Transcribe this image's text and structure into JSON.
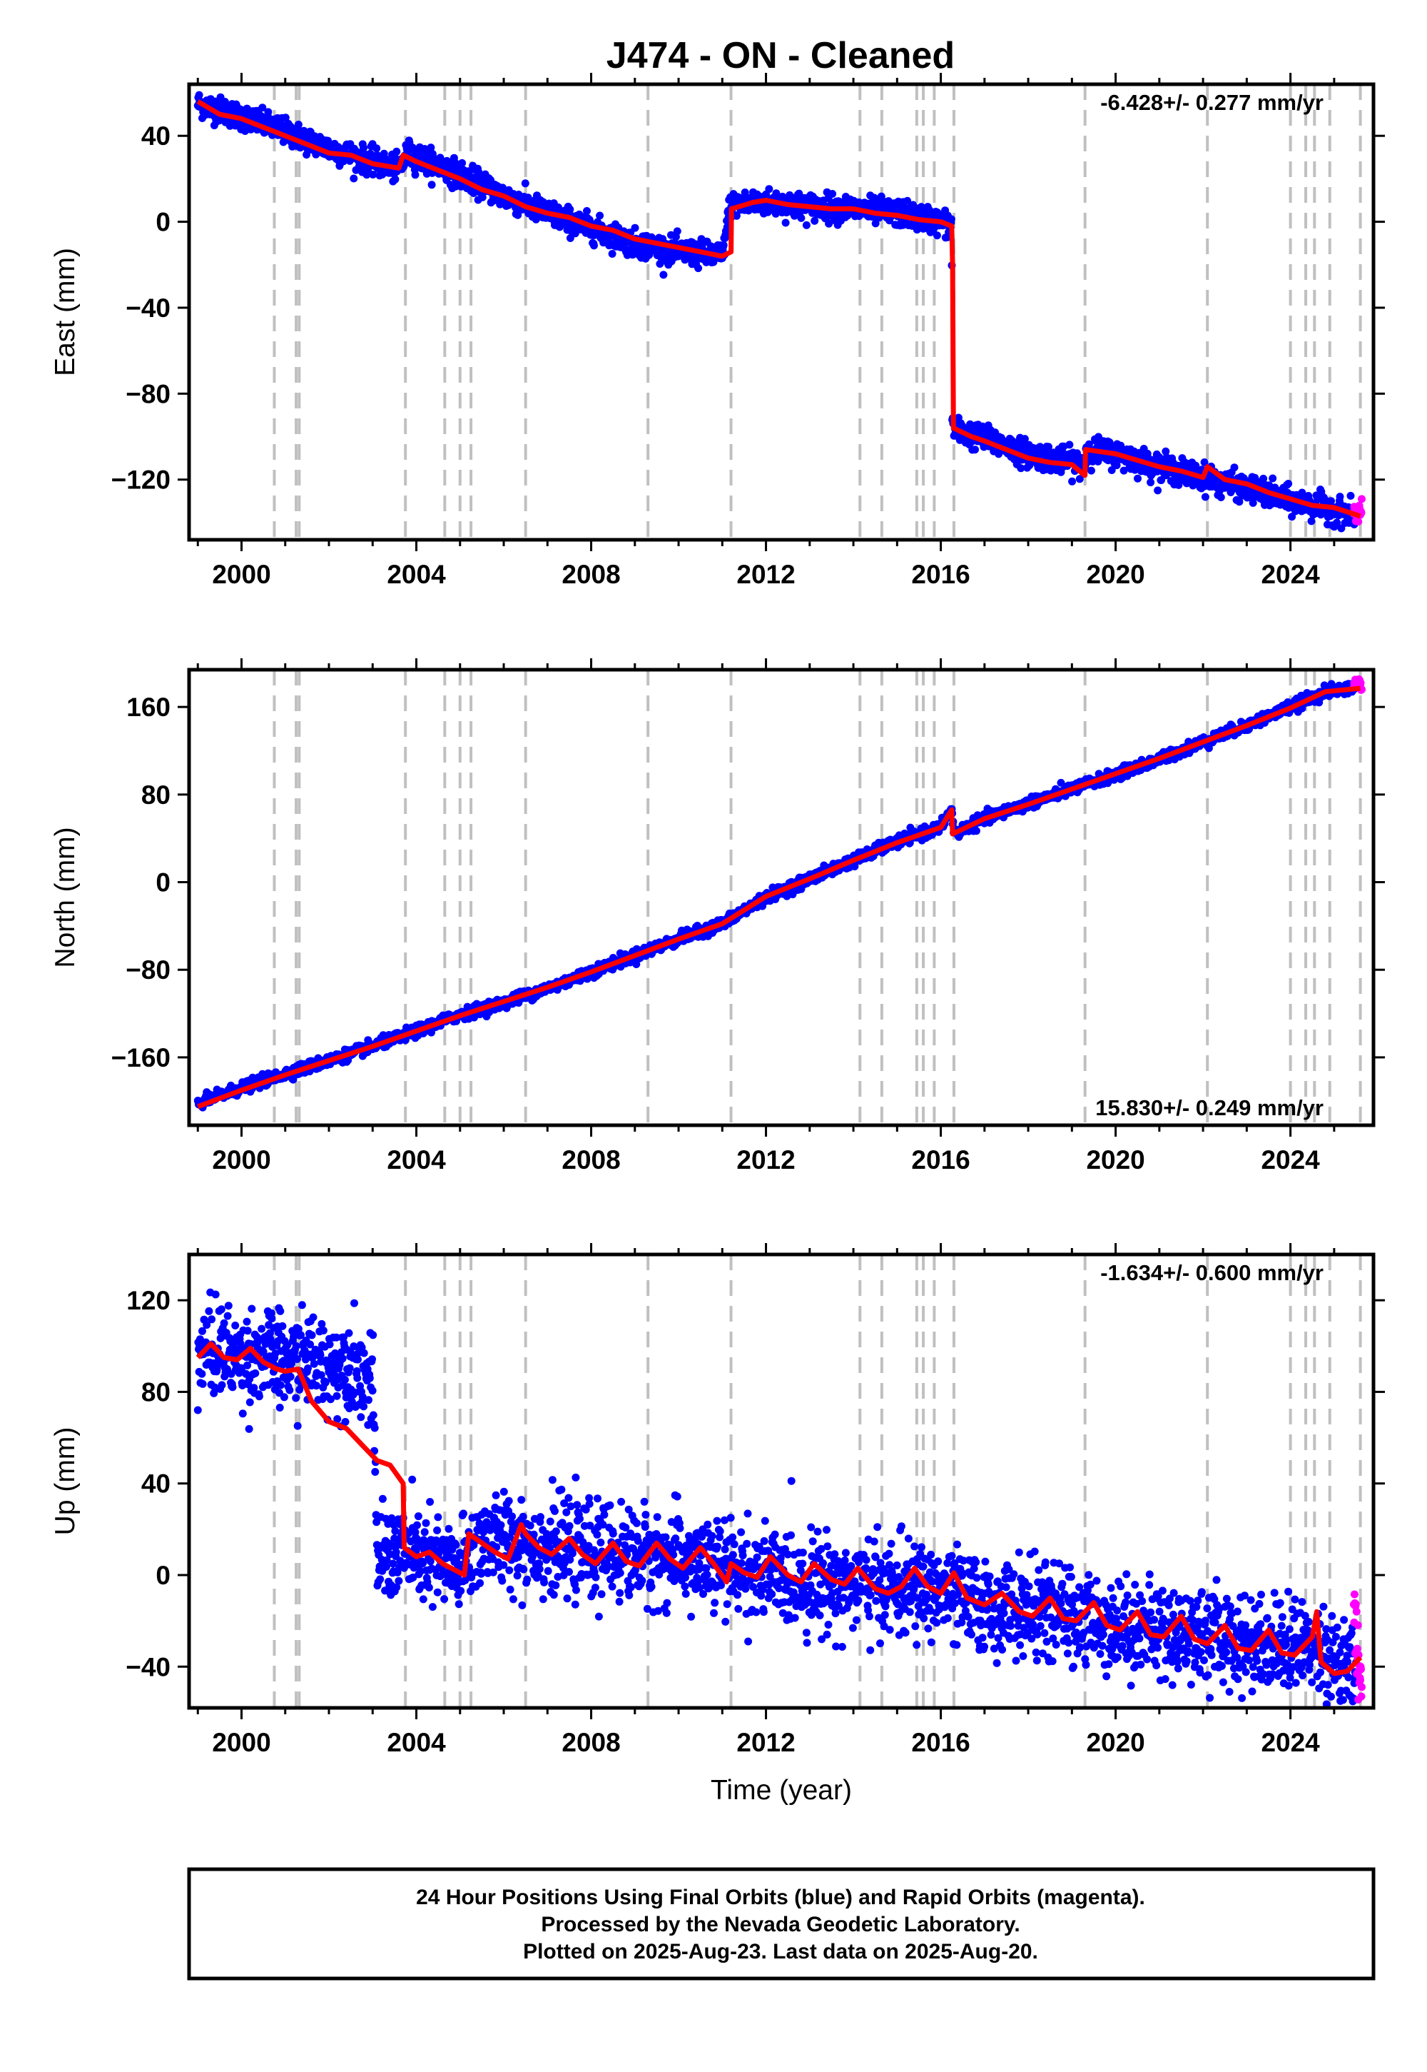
{
  "title": "J474  - ON - Cleaned",
  "colors": {
    "final_orbits": "#0000ff",
    "rapid_orbits": "#ff00ff",
    "model": "#ff0000",
    "event_lines": "#c0c0c0"
  },
  "chart_data": [
    {
      "type": "scatter",
      "component": "East",
      "ylabel": "East (mm)",
      "xlim": [
        1998.8,
        2025.9
      ],
      "ylim": [
        -148,
        64
      ],
      "yticks": [
        40,
        0,
        -40,
        -80,
        -120
      ],
      "xticks": [
        2000,
        2004,
        2008,
        2012,
        2016,
        2020,
        2024
      ],
      "rate_label": "-6.428+/- 0.277 mm/yr",
      "rate_position": "top-right",
      "noise": 3.0,
      "series": [
        {
          "name": "Final Orbits",
          "color": "#0000ff",
          "x": [
            1999.0,
            2000.0,
            2001.0,
            2002.0,
            2003.0,
            2003.6,
            2003.8,
            2005.0,
            2006.0,
            2007.0,
            2008.0,
            2009.0,
            2010.0,
            2011.0,
            2011.18,
            2012.0,
            2013.0,
            2014.0,
            2015.0,
            2016.0,
            2016.25,
            2016.26,
            2016.3,
            2017.0,
            2018.0,
            2019.3,
            2019.32,
            2020.0,
            2021.0,
            2022.0,
            2023.0,
            2024.0,
            2025.0,
            2025.5
          ],
          "y": [
            55,
            49,
            42,
            34,
            28,
            24,
            32,
            22,
            12,
            4,
            -3,
            -10,
            -14,
            -16,
            8,
            9,
            7,
            6,
            4,
            0,
            -2,
            -90,
            -97,
            -101,
            -108,
            -113,
            -106,
            -108,
            -114,
            -119,
            -124,
            -130,
            -134,
            -137
          ]
        },
        {
          "name": "Rapid Orbits",
          "color": "#ff00ff",
          "x": [
            2025.45,
            2025.55,
            2025.63
          ],
          "y": [
            -135,
            -139,
            -133
          ]
        }
      ],
      "model": {
        "x": [
          1999.0,
          1999.5,
          2000.0,
          2000.5,
          2001.0,
          2001.5,
          2002.0,
          2002.5,
          2003.0,
          2003.6,
          2003.7,
          2004.0,
          2004.5,
          2005.0,
          2005.5,
          2006.0,
          2006.5,
          2007.0,
          2007.5,
          2008.0,
          2008.5,
          2009.0,
          2009.5,
          2010.0,
          2010.5,
          2011.0,
          2011.2,
          2011.21,
          2011.7,
          2012.0,
          2012.5,
          2013.0,
          2013.5,
          2014.0,
          2014.5,
          2015.0,
          2015.5,
          2016.0,
          2016.25,
          2016.27,
          2016.29,
          2016.7,
          2017.0,
          2017.5,
          2018.0,
          2018.5,
          2019.0,
          2019.29,
          2019.3,
          2019.31,
          2020.0,
          2020.5,
          2021.0,
          2021.5,
          2022.0,
          2022.1,
          2022.5,
          2023.0,
          2023.5,
          2024.0,
          2024.5,
          2025.0,
          2025.6
        ],
        "y": [
          56,
          50,
          48,
          44,
          40,
          36,
          32,
          31,
          27,
          25,
          31,
          28,
          24,
          20,
          15,
          12,
          7,
          4,
          2,
          -2,
          -4,
          -8,
          -10,
          -12,
          -14,
          -16,
          -14,
          6,
          9,
          10,
          8,
          7,
          6,
          6,
          4,
          3,
          1,
          0,
          -2,
          -20,
          -96,
          -100,
          -102,
          -106,
          -110,
          -112,
          -113,
          -118,
          -118,
          -106,
          -108,
          -111,
          -114,
          -116,
          -119,
          -114,
          -120,
          -122,
          -126,
          -129,
          -132,
          -133,
          -137
        ]
      }
    },
    {
      "type": "scatter",
      "component": "North",
      "ylabel": "North (mm)",
      "xlim": [
        1998.8,
        2025.9
      ],
      "ylim": [
        -222,
        194
      ],
      "yticks": [
        160,
        80,
        0,
        -80,
        -160
      ],
      "xticks": [
        2000,
        2004,
        2008,
        2012,
        2016,
        2020,
        2024
      ],
      "rate_label": "15.830+/- 0.249 mm/yr",
      "rate_position": "bottom-right",
      "noise": 2.5,
      "series": [
        {
          "name": "Final Orbits",
          "color": "#0000ff",
          "x": [
            1999.0,
            2000.0,
            2001.0,
            2002.0,
            2003.0,
            2004.0,
            2005.0,
            2006.0,
            2007.0,
            2008.0,
            2009.0,
            2010.0,
            2011.0,
            2012.0,
            2013.0,
            2014.0,
            2015.0,
            2016.0,
            2016.25,
            2016.3,
            2017.0,
            2018.0,
            2019.0,
            2020.0,
            2021.0,
            2022.0,
            2023.0,
            2024.0,
            2024.8,
            2025.5
          ],
          "y": [
            -202,
            -188,
            -175,
            -163,
            -150,
            -136,
            -121,
            -110,
            -97,
            -82,
            -67,
            -52,
            -38,
            -14,
            3,
            20,
            37,
            50,
            67,
            44,
            58,
            72,
            85,
            98,
            112,
            128,
            143,
            160,
            174,
            178
          ]
        },
        {
          "name": "Rapid Orbits",
          "color": "#ff00ff",
          "x": [
            2025.45,
            2025.55,
            2025.63
          ],
          "y": [
            180,
            184,
            178
          ]
        }
      ],
      "model": {
        "x": [
          1999.0,
          2000.0,
          2001.0,
          2002.0,
          2003.0,
          2004.0,
          2005.0,
          2006.0,
          2007.0,
          2008.0,
          2009.0,
          2010.0,
          2011.0,
          2012.0,
          2013.0,
          2014.0,
          2015.0,
          2016.0,
          2016.25,
          2016.27,
          2017.0,
          2018.0,
          2019.0,
          2020.0,
          2021.0,
          2022.0,
          2023.0,
          2024.0,
          2024.8,
          2025.6
        ],
        "y": [
          -205,
          -190,
          -176,
          -163,
          -150,
          -136,
          -122,
          -109,
          -96,
          -82,
          -67,
          -52,
          -38,
          -13,
          3,
          20,
          36,
          50,
          66,
          44,
          58,
          71,
          85,
          99,
          113,
          128,
          143,
          159,
          174,
          177
        ]
      }
    },
    {
      "type": "scatter",
      "component": "Up",
      "ylabel": "Up (mm)",
      "xlim": [
        1998.8,
        2025.9
      ],
      "ylim": [
        -58,
        140
      ],
      "yticks": [
        120,
        80,
        40,
        0,
        -40
      ],
      "xticks": [
        2000,
        2004,
        2008,
        2012,
        2016,
        2020,
        2024
      ],
      "xlabel": "Time (year)",
      "rate_label": "-1.634+/- 0.600 mm/yr",
      "rate_position": "top-right",
      "noise": 10,
      "series": [
        {
          "name": "Final Orbits",
          "color": "#0000ff",
          "x": [
            1999.0,
            1999.5,
            2000.0,
            2000.5,
            2001.0,
            2001.5,
            2002.0,
            2002.5,
            2003.0,
            2003.1,
            2003.7,
            2004.0,
            2004.5,
            2005.0,
            2005.5,
            2006.0,
            2006.5,
            2007.0,
            2008.0,
            2009.0,
            2010.0,
            2011.0,
            2012.0,
            2013.0,
            2014.0,
            2015.0,
            2016.0,
            2017.0,
            2018.0,
            2019.0,
            2020.0,
            2021.0,
            2022.0,
            2023.0,
            2024.0,
            2024.6,
            2025.0,
            2025.5
          ],
          "y": [
            96,
            99,
            94,
            97,
            92,
            95,
            91,
            93,
            84,
            8,
            10,
            8,
            5,
            2,
            16,
            15,
            14,
            12,
            10,
            9,
            7,
            3,
            0,
            -3,
            -4,
            -6,
            -7,
            -14,
            -15,
            -18,
            -22,
            -24,
            -26,
            -29,
            -31,
            -30,
            -38,
            -43
          ]
        },
        {
          "name": "Rapid Orbits",
          "color": "#ff00ff",
          "x": [
            2025.45,
            2025.52,
            2025.58,
            2025.63
          ],
          "y": [
            -18,
            -30,
            -40,
            -46
          ]
        }
      ],
      "model": {
        "x": [
          1999.0,
          1999.3,
          1999.6,
          1999.9,
          2000.2,
          2000.5,
          2000.8,
          2001.0,
          2001.3,
          2001.6,
          2002.0,
          2002.4,
          2002.8,
          2003.1,
          2003.4,
          2003.7,
          2003.72,
          2004.0,
          2004.3,
          2004.6,
          2004.9,
          2005.1,
          2005.2,
          2005.5,
          2005.8,
          2006.1,
          2006.4,
          2006.5,
          2006.8,
          2007.1,
          2007.5,
          2007.8,
          2008.1,
          2008.5,
          2008.8,
          2009.1,
          2009.5,
          2009.8,
          2010.1,
          2010.5,
          2010.8,
          2011.1,
          2011.2,
          2011.5,
          2011.8,
          2012.1,
          2012.5,
          2012.8,
          2013.1,
          2013.5,
          2013.8,
          2014.1,
          2014.5,
          2014.8,
          2015.1,
          2015.4,
          2015.7,
          2016.0,
          2016.3,
          2016.6,
          2017.0,
          2017.4,
          2017.8,
          2018.1,
          2018.5,
          2018.8,
          2019.1,
          2019.5,
          2019.8,
          2020.1,
          2020.5,
          2020.8,
          2021.1,
          2021.5,
          2021.8,
          2022.1,
          2022.5,
          2022.8,
          2023.1,
          2023.5,
          2023.8,
          2024.1,
          2024.5,
          2024.6,
          2024.7,
          2025.0,
          2025.3,
          2025.6
        ],
        "y": [
          95,
          101,
          95,
          94,
          99,
          93,
          90,
          89,
          90,
          76,
          67,
          64,
          56,
          50,
          48,
          40,
          12,
          8,
          10,
          5,
          2,
          0,
          18,
          14,
          10,
          7,
          22,
          18,
          12,
          9,
          16,
          9,
          5,
          14,
          6,
          4,
          14,
          7,
          3,
          12,
          5,
          -3,
          5,
          1,
          -1,
          8,
          0,
          -3,
          5,
          -2,
          -4,
          3,
          -6,
          -8,
          -5,
          3,
          -5,
          -8,
          1,
          -10,
          -13,
          -8,
          -16,
          -18,
          -10,
          -19,
          -20,
          -12,
          -22,
          -24,
          -16,
          -26,
          -27,
          -18,
          -28,
          -30,
          -22,
          -32,
          -33,
          -24,
          -34,
          -35,
          -27,
          -16,
          -38,
          -43,
          -42,
          -36
        ]
      }
    }
  ],
  "event_lines": [
    2000.75,
    2001.25,
    2001.32,
    2003.75,
    2004.65,
    2005.0,
    2005.25,
    2006.5,
    2009.3,
    2011.2,
    2014.15,
    2014.65,
    2015.45,
    2015.6,
    2015.85,
    2016.3,
    2019.3,
    2022.1,
    2024.0,
    2024.35,
    2024.55,
    2024.9,
    2025.6
  ],
  "footer": {
    "line1": "24 Hour Positions Using Final Orbits (blue) and Rapid Orbits (magenta).",
    "line2": "Processed by the Nevada Geodetic Laboratory.",
    "line3": "Plotted on 2025-Aug-23. Last data on 2025-Aug-20."
  }
}
